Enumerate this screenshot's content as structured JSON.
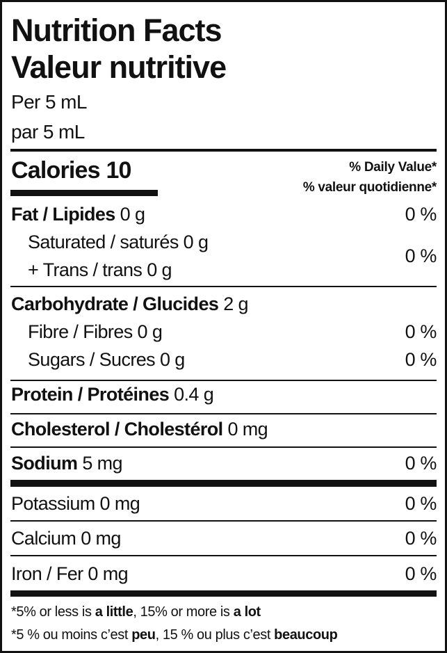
{
  "header": {
    "title_en": "Nutrition Facts",
    "title_fr": "Valeur nutritive",
    "serving_en": "Per 5 mL",
    "serving_fr": "par 5 mL"
  },
  "calories": {
    "label": "Calories",
    "value": "10"
  },
  "daily_value": {
    "en": "% Daily Value*",
    "fr": "% valeur quotidienne*"
  },
  "nutrients": {
    "fat": {
      "label": "Fat / Lipides",
      "amount": "0 g",
      "dv": "0 %"
    },
    "saturated": {
      "label": "Saturated / saturés 0 g"
    },
    "trans": {
      "label": "+ Trans / trans 0 g"
    },
    "sat_trans_dv": "0 %",
    "carbohydrate": {
      "label": "Carbohydrate / Glucides",
      "amount": "2 g"
    },
    "fibre": {
      "label": "Fibre / Fibres 0 g",
      "dv": "0 %"
    },
    "sugars": {
      "label": "Sugars / Sucres 0 g",
      "dv": "0 %"
    },
    "protein": {
      "label": "Protein / Protéines",
      "amount": "0.4 g"
    },
    "cholesterol": {
      "label": "Cholesterol / Cholestérol",
      "amount": "0 mg"
    },
    "sodium": {
      "label": "Sodium",
      "amount": "5 mg",
      "dv": "0 %"
    },
    "potassium": {
      "label": "Potassium 0 mg",
      "dv": "0 %"
    },
    "calcium": {
      "label": "Calcium 0 mg",
      "dv": "0 %"
    },
    "iron": {
      "label": "Iron / Fer 0 mg",
      "dv": "0 %"
    }
  },
  "footnote": {
    "en": [
      "*5% or less is ",
      "a little",
      ", 15% or more is ",
      "a lot"
    ],
    "fr": [
      "*5 % ou moins c’est ",
      "peu",
      ", 15 % ou plus c’est ",
      "beaucoup"
    ]
  }
}
